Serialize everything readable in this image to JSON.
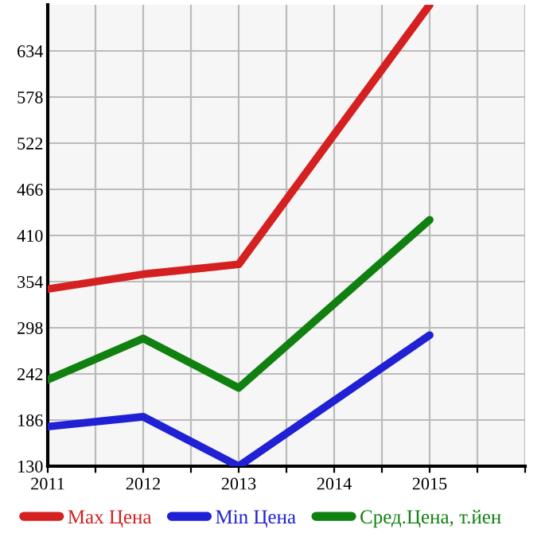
{
  "chart_data": {
    "type": "line",
    "x": [
      2011,
      2012,
      2013,
      2015
    ],
    "series": [
      {
        "name": "Max Цена",
        "color": "#d42020",
        "values": [
          345,
          363,
          375,
          690
        ]
      },
      {
        "name": "Min Цена",
        "color": "#2020d4",
        "values": [
          178,
          190,
          130,
          289
        ]
      },
      {
        "name": "Сред.Цена, т.йен",
        "color": "#108010",
        "values": [
          235,
          285,
          225,
          429
        ]
      }
    ],
    "xlim": [
      2011,
      2016
    ],
    "xticks": [
      2011,
      {
        "value": 2011.5,
        "label": null
      },
      2012,
      {
        "value": 2012.5,
        "label": null
      },
      2013,
      {
        "value": 2013.5,
        "label": null
      },
      2014,
      {
        "value": 2014.5,
        "label": null
      },
      2015,
      {
        "value": 2015.5,
        "label": null
      },
      {
        "value": 2016,
        "label": null
      }
    ],
    "ylim": [
      130,
      690
    ],
    "yticks": [
      130,
      186,
      242,
      298,
      354,
      410,
      466,
      522,
      578,
      634
    ],
    "grid": true,
    "legend": "bottom",
    "marker": "none",
    "line_style": "solid"
  }
}
